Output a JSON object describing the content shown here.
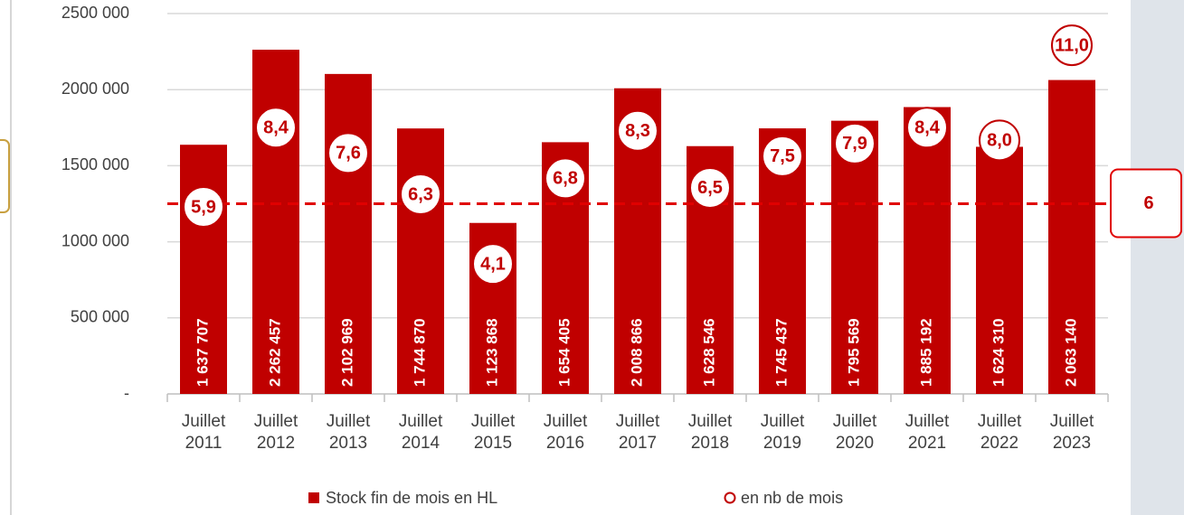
{
  "chart_data": {
    "type": "bar",
    "categories": [
      "Juillet 2011",
      "Juillet 2012",
      "Juillet 2013",
      "Juillet 2014",
      "Juillet 2015",
      "Juillet 2016",
      "Juillet 2017",
      "Juillet 2018",
      "Juillet 2019",
      "Juillet 2020",
      "Juillet 2021",
      "Juillet 2022",
      "Juillet 2023"
    ],
    "series": [
      {
        "name": "Stock fin de mois en HL",
        "color": "#c00000",
        "values": [
          1637707,
          2262457,
          2102969,
          1744870,
          1123868,
          1654405,
          2008866,
          1628546,
          1745437,
          1795569,
          1885192,
          1624310,
          2063140
        ],
        "value_labels": [
          "1 637 707",
          "2 262 457",
          "2 102 969",
          "1 744 870",
          "1 123 868",
          "1 654 405",
          "2 008 866",
          "1 628 546",
          "1 745 437",
          "1 795 569",
          "1 885 192",
          "1 624 310",
          "2 063 140"
        ]
      },
      {
        "name": "en nb de mois",
        "color": "#c00000",
        "axis": "y2",
        "values": [
          5.9,
          8.4,
          7.6,
          6.3,
          4.1,
          6.8,
          8.3,
          6.5,
          7.5,
          7.9,
          8.4,
          8.0,
          11.0
        ],
        "value_labels": [
          "5,9",
          "8,4",
          "7,6",
          "6,3",
          "4,1",
          "6,8",
          "8,3",
          "6,5",
          "7,5",
          "7,9",
          "8,4",
          "8,0",
          "11,0"
        ]
      }
    ],
    "ylim": [
      0,
      2500000
    ],
    "yticks": [
      {
        "value": 0,
        "label": "-"
      },
      {
        "value": 500000,
        "label": "500 000"
      },
      {
        "value": 1000000,
        "label": "1000 000"
      },
      {
        "value": 1500000,
        "label": "1500 000"
      },
      {
        "value": 2000000,
        "label": "2000 000"
      },
      {
        "value": 2500000,
        "label": "2500 000"
      }
    ],
    "y2lim": [
      0,
      12
    ],
    "reference_line": {
      "value": 6,
      "axis": "y2"
    },
    "grid": true,
    "legend": "bottom"
  }
}
